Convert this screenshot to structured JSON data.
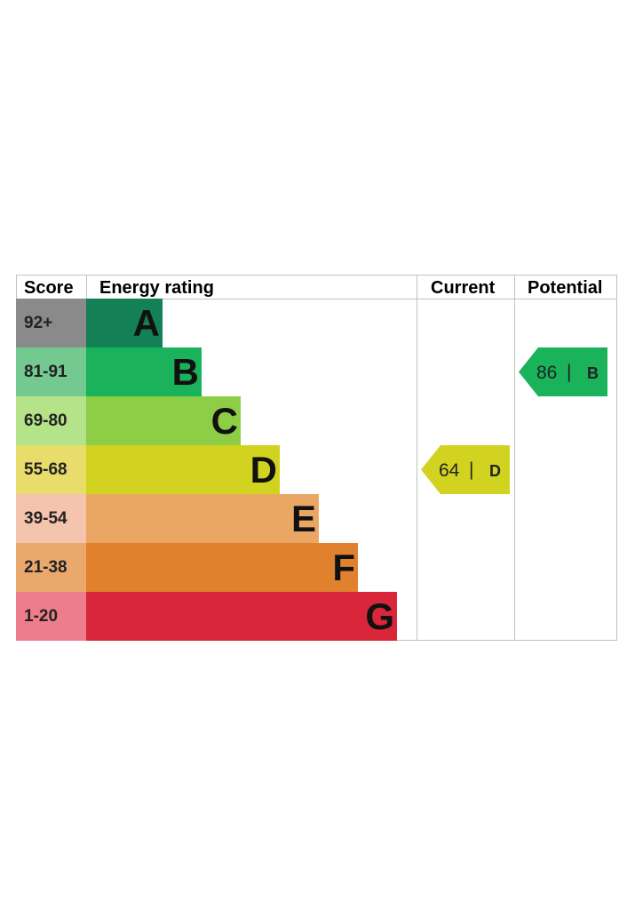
{
  "header": {
    "score": "Score",
    "energy_rating": "Energy rating",
    "current": "Current",
    "potential": "Potential"
  },
  "chart_data": {
    "type": "bar",
    "categories": [
      "A",
      "B",
      "C",
      "D",
      "E",
      "F",
      "G"
    ],
    "bands": [
      {
        "letter": "A",
        "score_range": "92+",
        "color": "#138055",
        "score_bg": "#8a8a8a"
      },
      {
        "letter": "B",
        "score_range": "81-91",
        "color": "#1ab25a",
        "score_bg": "#74c990"
      },
      {
        "letter": "C",
        "score_range": "69-80",
        "color": "#8dce46",
        "score_bg": "#b5e38a"
      },
      {
        "letter": "D",
        "score_range": "55-68",
        "color": "#d1d320",
        "score_bg": "#e8dc6a"
      },
      {
        "letter": "E",
        "score_range": "39-54",
        "color": "#eaa764",
        "score_bg": "#f4c4ad"
      },
      {
        "letter": "F",
        "score_range": "21-38",
        "color": "#e0812e",
        "score_bg": "#eba86d"
      },
      {
        "letter": "G",
        "score_range": "1-20",
        "color": "#d9263a",
        "score_bg": "#ee7d8b"
      }
    ],
    "current": {
      "score": "64",
      "separator": "|",
      "band": "D",
      "color": "#d1d320"
    },
    "potential": {
      "score": "86",
      "separator": "|",
      "band": "B",
      "color": "#1ab25a"
    }
  }
}
